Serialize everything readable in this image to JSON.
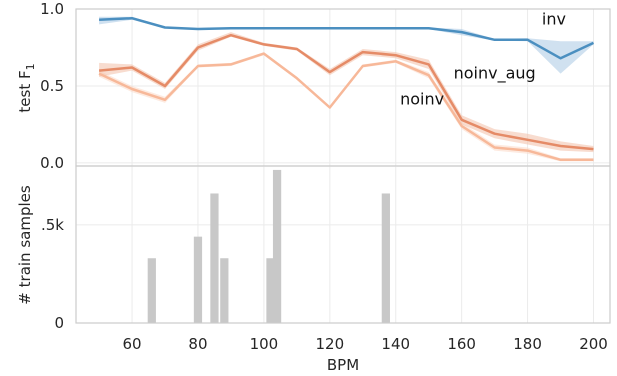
{
  "chart_data": [
    {
      "type": "line",
      "ylabel": "test F",
      "ylabel_subscript": "1",
      "xlim": [
        43,
        205
      ],
      "ylim": [
        -0.02,
        1.0
      ],
      "grid": true,
      "y_ticks": [
        0.0,
        0.5,
        1.0
      ],
      "y_tick_labels": [
        "0.0",
        "0.5",
        "1.0"
      ],
      "series": [
        {
          "name": "inv",
          "color": "#4b8fc0",
          "band_color": "#a9c9e3",
          "x": [
            50,
            60,
            70,
            80,
            90,
            100,
            110,
            120,
            130,
            140,
            150,
            160,
            170,
            180,
            190,
            200
          ],
          "y": [
            0.93,
            0.94,
            0.88,
            0.87,
            0.875,
            0.875,
            0.875,
            0.875,
            0.875,
            0.875,
            0.875,
            0.85,
            0.8,
            0.8,
            0.68,
            0.78
          ],
          "lower": [
            0.9,
            0.93,
            0.875,
            0.865,
            0.87,
            0.87,
            0.87,
            0.87,
            0.87,
            0.87,
            0.87,
            0.83,
            0.795,
            0.79,
            0.58,
            0.77
          ],
          "upper": [
            0.95,
            0.95,
            0.885,
            0.875,
            0.88,
            0.88,
            0.88,
            0.88,
            0.88,
            0.88,
            0.88,
            0.87,
            0.805,
            0.81,
            0.79,
            0.79
          ]
        },
        {
          "name": "noinv_aug",
          "color": "#e58b67",
          "band_color": "#f3c0a8",
          "x": [
            50,
            60,
            70,
            80,
            90,
            100,
            110,
            120,
            130,
            140,
            150,
            160,
            170,
            180,
            190,
            200
          ],
          "y": [
            0.6,
            0.62,
            0.5,
            0.75,
            0.83,
            0.77,
            0.74,
            0.59,
            0.72,
            0.7,
            0.64,
            0.28,
            0.19,
            0.15,
            0.11,
            0.09
          ],
          "lower": [
            0.56,
            0.6,
            0.48,
            0.73,
            0.82,
            0.76,
            0.73,
            0.57,
            0.7,
            0.68,
            0.61,
            0.25,
            0.16,
            0.12,
            0.08,
            0.07
          ],
          "upper": [
            0.65,
            0.64,
            0.52,
            0.77,
            0.85,
            0.78,
            0.75,
            0.61,
            0.74,
            0.72,
            0.67,
            0.31,
            0.22,
            0.19,
            0.14,
            0.11
          ]
        },
        {
          "name": "noinv",
          "color": "#f7b899",
          "band_color": "#fbd8c6",
          "x": [
            50,
            60,
            70,
            80,
            90,
            100,
            110,
            120,
            130,
            140,
            150,
            160,
            170,
            180,
            190,
            200
          ],
          "y": [
            0.58,
            0.48,
            0.41,
            0.63,
            0.64,
            0.71,
            0.55,
            0.36,
            0.63,
            0.66,
            0.57,
            0.24,
            0.1,
            0.08,
            0.02,
            0.02
          ],
          "lower": [
            0.56,
            0.46,
            0.39,
            0.62,
            0.63,
            0.7,
            0.54,
            0.35,
            0.62,
            0.65,
            0.55,
            0.22,
            0.08,
            0.06,
            0.01,
            0.01
          ],
          "upper": [
            0.6,
            0.5,
            0.43,
            0.64,
            0.65,
            0.72,
            0.56,
            0.37,
            0.64,
            0.67,
            0.59,
            0.26,
            0.12,
            0.1,
            0.03,
            0.03
          ]
        }
      ]
    },
    {
      "type": "bar",
      "xlabel": "BPM",
      "ylabel": "# train samples",
      "xlim": [
        43,
        205
      ],
      "ylim": [
        0,
        800
      ],
      "grid": true,
      "y_ticks": [
        0,
        500
      ],
      "y_tick_labels": [
        "0",
        ".5k"
      ],
      "x_ticks": [
        60,
        80,
        100,
        120,
        140,
        160,
        180,
        200
      ],
      "x_tick_labels": [
        "60",
        "80",
        "100",
        "120",
        "140",
        "160",
        "180",
        "200"
      ],
      "bar_color": "#c8c8c8",
      "bar_width": 2.5,
      "x": [
        66,
        80,
        85,
        88,
        102,
        104,
        137
      ],
      "values": [
        330,
        440,
        660,
        330,
        330,
        780,
        660
      ]
    }
  ]
}
